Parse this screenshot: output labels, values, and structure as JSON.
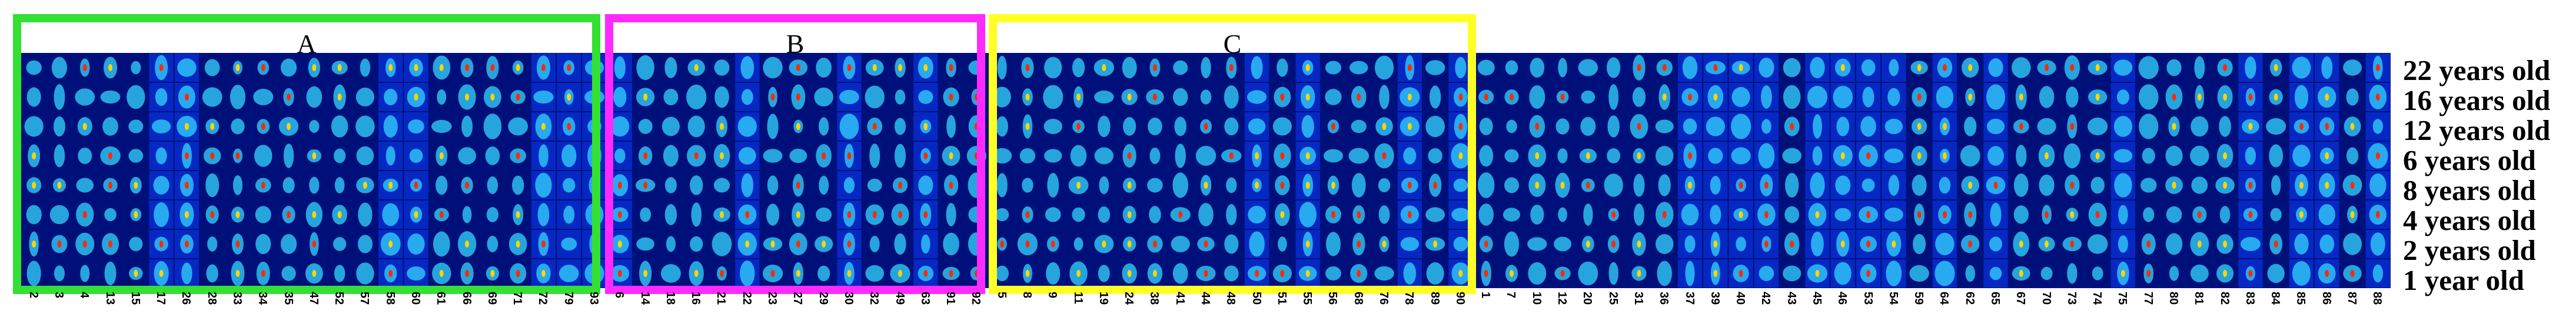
{
  "groups": [
    {
      "label": "A",
      "color": "#33e033"
    },
    {
      "label": "B",
      "color": "#ff2aff"
    },
    {
      "label": "C",
      "color": "#ffff26"
    }
  ],
  "row_labels": [
    "22 years old",
    "16 years old",
    "12 years old",
    "6 years old",
    "8 years old",
    "4 years old",
    "2 years old",
    "1 year old"
  ],
  "column_labels": [
    "2",
    "3",
    "4",
    "13",
    "15",
    "17",
    "26",
    "28",
    "33",
    "34",
    "35",
    "47",
    "52",
    "57",
    "58",
    "60",
    "61",
    "66",
    "69",
    "71",
    "72",
    "79",
    "93",
    "6",
    "14",
    "18",
    "16",
    "21",
    "22",
    "23",
    "27",
    "29",
    "30",
    "32",
    "49",
    "63",
    "91",
    "92",
    "5",
    "8",
    "9",
    "11",
    "19",
    "24",
    "38",
    "41",
    "44",
    "48",
    "50",
    "51",
    "55",
    "56",
    "68",
    "76",
    "78",
    "89",
    "90",
    "1",
    "7",
    "10",
    "12",
    "20",
    "25",
    "31",
    "36",
    "37",
    "39",
    "40",
    "42",
    "43",
    "45",
    "46",
    "53",
    "54",
    "59",
    "64",
    "62",
    "65",
    "67",
    "70",
    "73",
    "74",
    "75",
    "77",
    "80",
    "81",
    "82",
    "83",
    "84",
    "85",
    "86",
    "87",
    "88"
  ],
  "colors": {
    "background": "#00107a",
    "low": "#0a3cff",
    "mid": "#33d6ff",
    "high": "#ff2a00"
  }
}
